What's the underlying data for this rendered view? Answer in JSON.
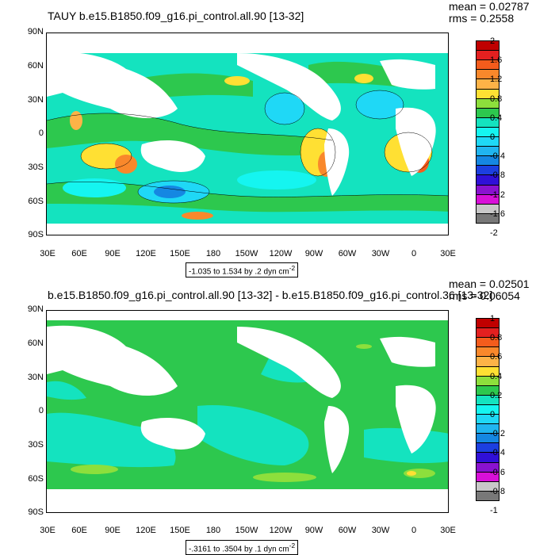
{
  "panel1": {
    "title": "TAUY b.e15.B1850.f09_g16.pi_control.all.90 [13-32]",
    "mean": "mean = 0.02787",
    "rms": "rms = 0.2558",
    "range_text": "-1.035 to 1.534 by .2 dyn cm",
    "range_sup": "-2",
    "colorbar_labels": [
      "2",
      "1.6",
      "1.2",
      "0.8",
      "0.4",
      "0",
      "-0.4",
      "-0.8",
      "-1.2",
      "-1.6",
      "-2"
    ],
    "colorbar_colors": [
      "#c00000",
      "#e32020",
      "#f45c1c",
      "#f9882b",
      "#fdb347",
      "#ffe033",
      "#8ddf3c",
      "#2dc84e",
      "#14e3bf",
      "#15f5f0",
      "#1fd8f6",
      "#20b5f0",
      "#1587e2",
      "#1c3fe0",
      "#3010d8",
      "#8a12d0",
      "#d810d8",
      "#c8c8c8",
      "#787878"
    ],
    "land_color": "#ffffff"
  },
  "panel2": {
    "title": "b.e15.B1850.f09_g16.pi_control.all.90 [13-32] - b.e15.B1850.f09_g16.pi_control.36 [13-32]",
    "mean": "mean = 0.02501",
    "rms": "rms = 0.06054",
    "range_text": "-.3161 to .3504 by .1 dyn cm",
    "range_sup": "-2",
    "colorbar_labels": [
      "1",
      "0.8",
      "0.6",
      "0.4",
      "0.2",
      "0",
      "-0.2",
      "-0.4",
      "-0.6",
      "-0.8",
      "-1"
    ],
    "colorbar_colors": [
      "#c00000",
      "#e32020",
      "#f45c1c",
      "#f9882b",
      "#fdb347",
      "#ffe033",
      "#8ddf3c",
      "#2dc84e",
      "#14e3bf",
      "#15f5f0",
      "#1fd8f6",
      "#20b5f0",
      "#1587e2",
      "#1c3fe0",
      "#3010d8",
      "#8a12d0",
      "#d810d8",
      "#c8c8c8",
      "#787878"
    ],
    "land_color": "#ffffff"
  },
  "axes": {
    "lat_labels": [
      "90N",
      "60N",
      "30N",
      "0",
      "30S",
      "60S",
      "90S"
    ],
    "lon_labels": [
      "30E",
      "60E",
      "90E",
      "120E",
      "150E",
      "180",
      "150W",
      "120W",
      "90W",
      "60W",
      "30W",
      "0",
      "30E"
    ]
  }
}
